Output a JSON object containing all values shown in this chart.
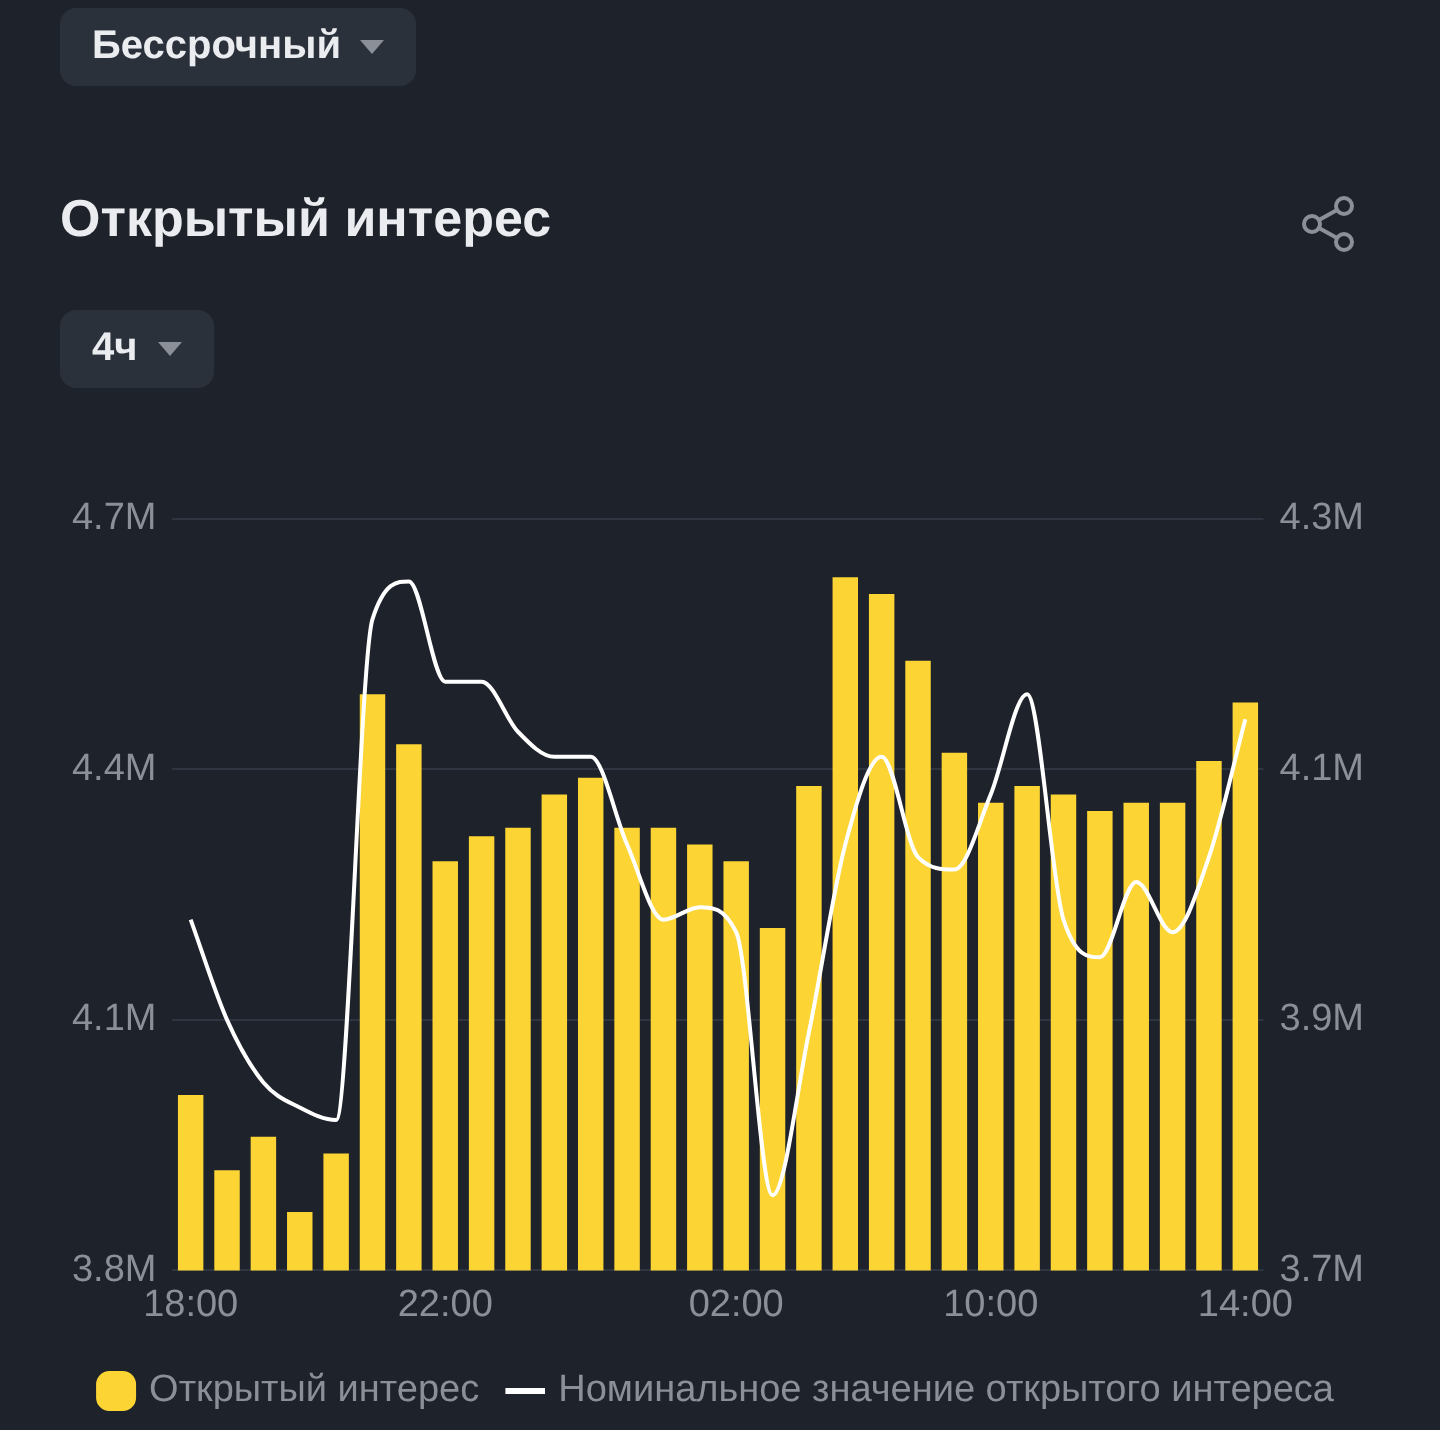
{
  "chart_data": {
    "type": "bar",
    "title": "Открытый интерес",
    "annotations": [
      "Бессрочный",
      "4ч"
    ],
    "categories": [
      "18:00",
      null,
      null,
      null,
      null,
      null,
      null,
      "22:00",
      null,
      null,
      null,
      null,
      null,
      null,
      null,
      "02:00",
      null,
      null,
      null,
      null,
      null,
      null,
      "10:00",
      null,
      null,
      null,
      null,
      null,
      null,
      "14:00"
    ],
    "series": [
      {
        "name": "Открытый интерес",
        "color": "#fcd535",
        "values": [
          4.01,
          3.92,
          3.96,
          3.87,
          3.94,
          4.49,
          4.43,
          4.29,
          4.32,
          4.33,
          4.37,
          4.39,
          4.33,
          4.33,
          4.31,
          4.29,
          4.21,
          4.38,
          4.63,
          4.61,
          4.53,
          4.42,
          4.36,
          4.38,
          4.37,
          4.35,
          4.36,
          4.36,
          4.41,
          4.48
        ]
      },
      {
        "name": "Номинальное значение открытого интереса",
        "type": "line",
        "axis": "y2",
        "color": "#ffffff",
        "values": [
          3.98,
          3.9,
          3.85,
          3.83,
          3.82,
          4.22,
          4.25,
          4.17,
          4.17,
          4.13,
          4.11,
          4.11,
          4.04,
          3.98,
          3.99,
          3.97,
          3.76,
          3.89,
          4.04,
          4.11,
          4.03,
          4.02,
          4.08,
          4.16,
          3.98,
          3.95,
          4.01,
          3.97,
          4.03,
          4.14
        ]
      }
    ],
    "ylim": [
      3.8,
      4.7
    ],
    "yticks": [
      {
        "value": 3.8,
        "label": "3.8M"
      },
      {
        "value": 4.1,
        "label": "4.1M"
      },
      {
        "value": 4.4,
        "label": "4.4M"
      },
      {
        "value": 4.7,
        "label": "4.7M"
      }
    ],
    "y2lim": [
      3.7,
      4.3
    ],
    "y2ticks": [
      {
        "value": 3.7,
        "label": "3.7M"
      },
      {
        "value": 3.9,
        "label": "3.9M"
      },
      {
        "value": 4.1,
        "label": "4.1M"
      },
      {
        "value": 4.3,
        "label": "4.3M"
      }
    ],
    "grid": "y",
    "legend": "bottom",
    "marker": "none",
    "line_style": "solid"
  }
}
